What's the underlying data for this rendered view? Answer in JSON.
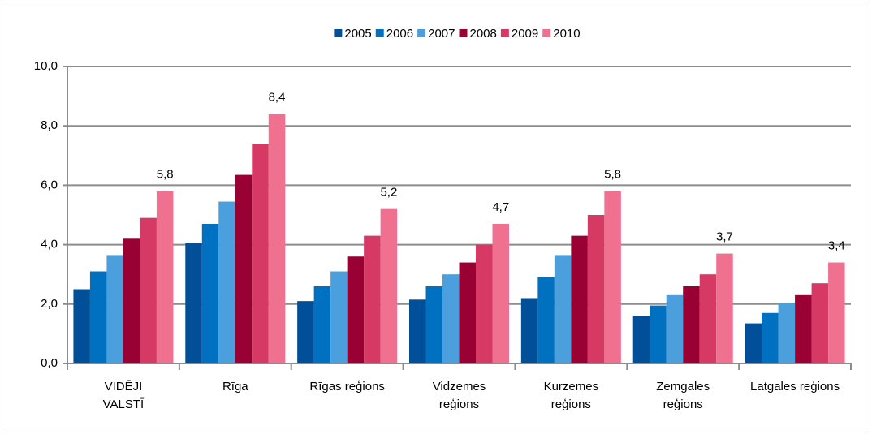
{
  "chart_data": {
    "type": "bar",
    "categories": [
      "VIDĒJI\nVALSTĪ",
      "Rīga",
      "Rīgas reģions",
      "Vidzemes\nreģions",
      "Kurzemes\nreģions",
      "Zemgales\nreģions",
      "Latgales reģions"
    ],
    "series": [
      {
        "name": "2005",
        "color": "#004f98",
        "values": [
          2.5,
          4.05,
          2.1,
          2.15,
          2.2,
          1.6,
          1.35
        ]
      },
      {
        "name": "2006",
        "color": "#0070c0",
        "values": [
          3.1,
          4.7,
          2.6,
          2.6,
          2.9,
          1.95,
          1.7
        ]
      },
      {
        "name": "2007",
        "color": "#4a9fdc",
        "values": [
          3.65,
          5.45,
          3.1,
          3.0,
          3.65,
          2.3,
          2.05
        ]
      },
      {
        "name": "2008",
        "color": "#990033",
        "values": [
          4.2,
          6.35,
          3.6,
          3.4,
          4.3,
          2.6,
          2.3
        ]
      },
      {
        "name": "2009",
        "color": "#d63a64",
        "values": [
          4.9,
          7.4,
          4.3,
          4.0,
          5.0,
          3.0,
          2.7
        ]
      },
      {
        "name": "2010",
        "color": "#f07090",
        "values": [
          5.8,
          8.4,
          5.2,
          4.7,
          5.8,
          3.7,
          3.4
        ],
        "value_labels": [
          "5,8",
          "8,4",
          "5,2",
          "4,7",
          "5,8",
          "3,7",
          "3,4"
        ]
      }
    ],
    "ylim": [
      0,
      10
    ],
    "yticks": [
      {
        "value": 0,
        "label": "0,0"
      },
      {
        "value": 2,
        "label": "2,0"
      },
      {
        "value": 4,
        "label": "4,0"
      },
      {
        "value": 6,
        "label": "6,0"
      },
      {
        "value": 8,
        "label": "8,0"
      },
      {
        "value": 10,
        "label": "10,0"
      }
    ],
    "grid": true,
    "legend": "top"
  }
}
